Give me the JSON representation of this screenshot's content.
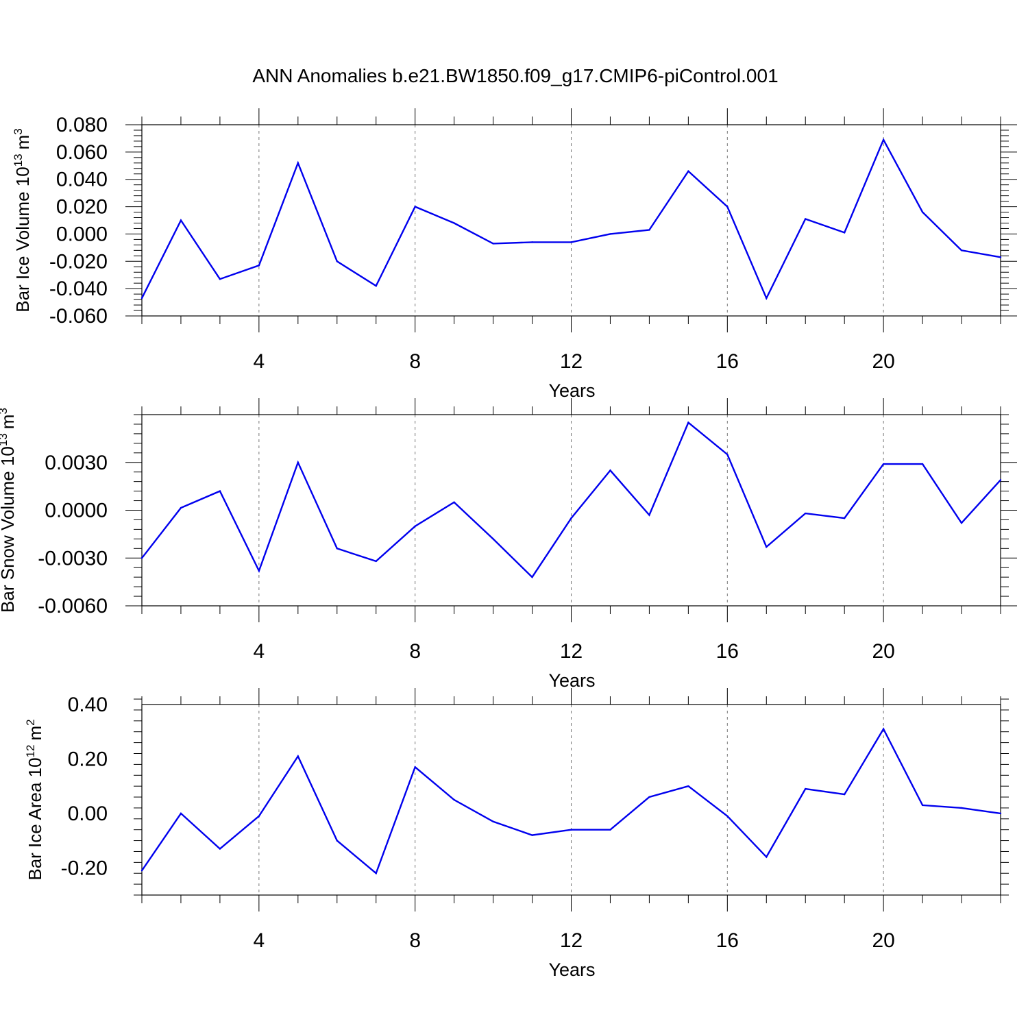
{
  "title": "ANN Anomalies b.e21.BW1850.f09_g17.CMIP6-piControl.001",
  "colors": {
    "line": "#0000ee",
    "axes": "#000000",
    "grid": "#777777"
  },
  "chart_data": [
    {
      "type": "line",
      "ylabel": "Bar Ice Volume 10",
      "ylabel_exp": "13",
      "ylabel_unit": "m",
      "ylabel_unit_exp": "3",
      "xlabel": "Years",
      "xlim": [
        1,
        23
      ],
      "ylim": [
        -0.06,
        0.08
      ],
      "xticks": [
        "4",
        "8",
        "12",
        "16",
        "20"
      ],
      "yticks": [
        "-0.060",
        "-0.040",
        "-0.020",
        "0.000",
        "0.020",
        "0.040",
        "0.060",
        "0.080"
      ],
      "grid": "vertical dashed at major x ticks",
      "x": [
        1,
        2,
        3,
        4,
        5,
        6,
        7,
        8,
        9,
        10,
        11,
        12,
        13,
        14,
        15,
        16,
        17,
        18,
        19,
        20,
        21,
        22,
        23
      ],
      "y": [
        -0.047,
        0.01,
        -0.033,
        -0.023,
        0.052,
        -0.02,
        -0.038,
        0.02,
        0.008,
        -0.007,
        -0.006,
        -0.006,
        0.0,
        0.003,
        0.046,
        0.02,
        -0.047,
        0.011,
        0.001,
        0.069,
        0.016,
        -0.012,
        -0.017
      ]
    },
    {
      "type": "line",
      "ylabel": "Bar Snow Volume 10",
      "ylabel_exp": "13",
      "ylabel_unit": "m",
      "ylabel_unit_exp": "3",
      "xlabel": "Years",
      "xlim": [
        1,
        23
      ],
      "ylim": [
        -0.006,
        0.006
      ],
      "xticks": [
        "4",
        "8",
        "12",
        "16",
        "20"
      ],
      "yticks": [
        "-0.0060",
        "-0.0030",
        "0.0000",
        "0.0030"
      ],
      "grid": "vertical dashed at major x ticks",
      "x": [
        1,
        2,
        3,
        4,
        5,
        6,
        7,
        8,
        9,
        10,
        11,
        12,
        13,
        14,
        15,
        16,
        17,
        18,
        19,
        20,
        21,
        22,
        23
      ],
      "y": [
        -0.003,
        0.00015,
        0.0012,
        -0.0038,
        0.003,
        -0.0024,
        -0.0032,
        -0.001,
        0.0005,
        -0.0018,
        -0.0042,
        -0.0005,
        0.0025,
        -0.0003,
        0.0055,
        0.0035,
        -0.0023,
        -0.0002,
        -0.0005,
        0.0029,
        0.0029,
        -0.0008,
        0.0019
      ]
    },
    {
      "type": "line",
      "ylabel": "Bar Ice Area 10",
      "ylabel_exp": "12",
      "ylabel_unit": "m",
      "ylabel_unit_exp": "2",
      "xlabel": "Years",
      "xlim": [
        1,
        23
      ],
      "ylim": [
        -0.3,
        0.4
      ],
      "xticks": [
        "4",
        "8",
        "12",
        "16",
        "20"
      ],
      "yticks": [
        "-0.20",
        "0.00",
        "0.20",
        "0.40"
      ],
      "grid": "vertical dashed at major x ticks",
      "x": [
        1,
        2,
        3,
        4,
        5,
        6,
        7,
        8,
        9,
        10,
        11,
        12,
        13,
        14,
        15,
        16,
        17,
        18,
        19,
        20,
        21,
        22,
        23
      ],
      "y": [
        -0.21,
        0.0,
        -0.13,
        -0.01,
        0.21,
        -0.1,
        -0.22,
        0.17,
        0.05,
        -0.03,
        -0.08,
        -0.06,
        -0.06,
        0.06,
        0.1,
        -0.01,
        -0.16,
        0.09,
        0.07,
        0.31,
        0.03,
        0.02,
        0.0
      ]
    }
  ]
}
